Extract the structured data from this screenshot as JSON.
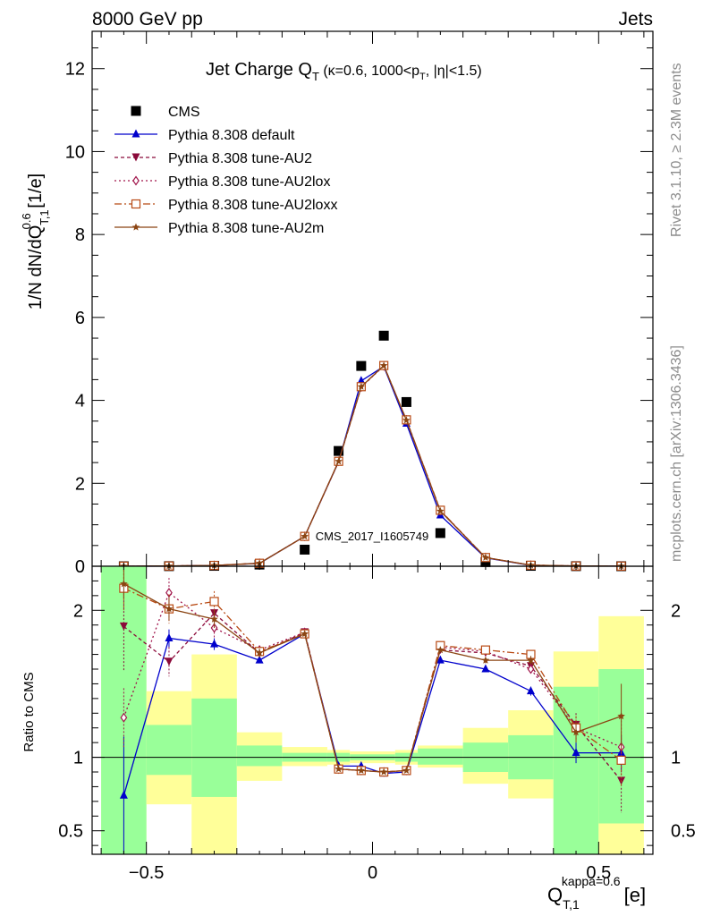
{
  "header": {
    "left": "8000 GeV pp",
    "right": "Jets"
  },
  "side": {
    "top": "Rivet 3.1.10, ≥ 2.3M events",
    "bottom": "mcplots.cern.ch [arXiv:1306.3436]"
  },
  "watermark": "CMS_2017_I1605749",
  "colors": {
    "cms": "#000000",
    "default": "#0000cc",
    "au2": "#8b0a3a",
    "au2lox": "#a0144a",
    "au2loxx": "#b84a14",
    "au2m": "#8b4513",
    "band_green": "#99ff99",
    "band_yellow": "#ffff99"
  },
  "chart_data": {
    "type": "scatter",
    "title": "Jet Charge Q_T (κ=0.6, 1000<p_T, |η|<1.5)",
    "xlabel": "Q_{T,1}^{kappa=0.6} [e]",
    "xlim": [
      -0.62,
      0.62
    ],
    "main": {
      "ylabel": "1/N dN/dQ_{T,1}^{0.6} [1/e]",
      "ylim": [
        0,
        12.9
      ],
      "yticks": [
        0,
        2,
        4,
        6,
        8,
        10,
        12
      ],
      "x": [
        -0.55,
        -0.45,
        -0.35,
        -0.25,
        -0.15,
        -0.075,
        -0.025,
        0.025,
        0.075,
        0.15,
        0.25,
        0.35,
        0.45,
        0.55
      ],
      "series": [
        {
          "name": "CMS",
          "key": "cms",
          "marker": "square",
          "dash": "none",
          "values": [
            0.0,
            0.003,
            0.01,
            0.04,
            0.4,
            2.78,
            4.83,
            5.56,
            3.96,
            0.8,
            0.1,
            0.01,
            0.003,
            0.001
          ]
        },
        {
          "name": "Pythia 8.308 default",
          "key": "default",
          "marker": "triangle-up",
          "dash": "none",
          "values": [
            0.001,
            0.005,
            0.018,
            0.07,
            0.72,
            2.52,
            4.47,
            4.82,
            3.44,
            1.23,
            0.2,
            0.02,
            0.005,
            0.003
          ]
        },
        {
          "name": "Pythia 8.308 tune-AU2",
          "key": "au2",
          "marker": "triangle-down",
          "dash": "4,3",
          "values": [
            0.001,
            0.006,
            0.02,
            0.073,
            0.72,
            2.52,
            4.32,
            4.84,
            3.52,
            1.34,
            0.21,
            0.025,
            0.006,
            0.003
          ]
        },
        {
          "name": "Pythia 8.308 tune-AU2lox",
          "key": "au2lox",
          "marker": "diamond-open",
          "dash": "2,3",
          "values": [
            0.001,
            0.006,
            0.02,
            0.073,
            0.72,
            2.53,
            4.32,
            4.83,
            3.53,
            1.34,
            0.21,
            0.025,
            0.006,
            0.003
          ]
        },
        {
          "name": "Pythia 8.308 tune-AU2loxx",
          "key": "au2loxx",
          "marker": "square-open",
          "dash": "8,3,2,3",
          "values": [
            0.001,
            0.006,
            0.02,
            0.072,
            0.72,
            2.53,
            4.33,
            4.84,
            3.53,
            1.35,
            0.21,
            0.025,
            0.006,
            0.003
          ]
        },
        {
          "name": "Pythia 8.308 tune-AU2m",
          "key": "au2m",
          "marker": "star",
          "dash": "none",
          "values": [
            0.001,
            0.006,
            0.02,
            0.072,
            0.72,
            2.53,
            4.33,
            4.84,
            3.52,
            1.33,
            0.21,
            0.025,
            0.006,
            0.003
          ]
        }
      ]
    },
    "ratio": {
      "ylabel": "Ratio to CMS",
      "ylim": [
        0.34,
        2.3
      ],
      "yticks": [
        0.5,
        1,
        2
      ],
      "reference": 1,
      "bins": [
        {
          "x0": -0.6,
          "x1": -0.5,
          "green": [
            0.34,
            2.3
          ],
          "yellow": [
            0.34,
            2.3
          ]
        },
        {
          "x0": -0.5,
          "x1": -0.4,
          "green": [
            0.88,
            1.22
          ],
          "yellow": [
            0.68,
            1.45
          ]
        },
        {
          "x0": -0.4,
          "x1": -0.3,
          "green": [
            0.73,
            1.4
          ],
          "yellow": [
            0.34,
            1.7
          ]
        },
        {
          "x0": -0.3,
          "x1": -0.2,
          "green": [
            0.94,
            1.08
          ],
          "yellow": [
            0.84,
            1.17
          ]
        },
        {
          "x0": -0.2,
          "x1": -0.1,
          "green": [
            0.97,
            1.03
          ],
          "yellow": [
            0.94,
            1.07
          ]
        },
        {
          "x0": -0.1,
          "x1": -0.05,
          "green": [
            0.97,
            1.03
          ],
          "yellow": [
            0.95,
            1.05
          ]
        },
        {
          "x0": -0.05,
          "x1": 0.0,
          "green": [
            0.98,
            1.02
          ],
          "yellow": [
            0.96,
            1.04
          ]
        },
        {
          "x0": 0.0,
          "x1": 0.05,
          "green": [
            0.98,
            1.02
          ],
          "yellow": [
            0.96,
            1.04
          ]
        },
        {
          "x0": 0.05,
          "x1": 0.1,
          "green": [
            0.97,
            1.03
          ],
          "yellow": [
            0.95,
            1.05
          ]
        },
        {
          "x0": 0.1,
          "x1": 0.2,
          "green": [
            0.95,
            1.06
          ],
          "yellow": [
            0.93,
            1.08
          ]
        },
        {
          "x0": 0.2,
          "x1": 0.3,
          "green": [
            0.9,
            1.1
          ],
          "yellow": [
            0.82,
            1.2
          ]
        },
        {
          "x0": 0.3,
          "x1": 0.4,
          "green": [
            0.85,
            1.15
          ],
          "yellow": [
            0.72,
            1.32
          ]
        },
        {
          "x0": 0.4,
          "x1": 0.5,
          "green": [
            0.34,
            1.48
          ],
          "yellow": [
            0.34,
            1.72
          ]
        },
        {
          "x0": 0.5,
          "x1": 0.6,
          "green": [
            0.55,
            1.6
          ],
          "yellow": [
            0.34,
            1.96
          ]
        }
      ],
      "series": [
        {
          "key": "default",
          "values": [
            0.74,
            1.81,
            1.77,
            1.66,
            1.84,
            0.94,
            0.94,
            0.89,
            0.9,
            1.66,
            1.6,
            1.45,
            1.03,
            1.03
          ],
          "err": [
            0.4,
            0.06,
            0.04,
            0.02,
            0.01,
            0.01,
            0.01,
            0.01,
            0.01,
            0.01,
            0.02,
            0.03,
            0.07,
            0.12
          ]
        },
        {
          "key": "au2",
          "values": [
            1.89,
            1.65,
            1.98,
            1.71,
            1.85,
            0.92,
            0.91,
            0.9,
            0.91,
            1.73,
            1.71,
            1.62,
            1.22,
            0.84
          ],
          "err": [
            0.3,
            0.1,
            0.08,
            0.03,
            0.01,
            0.01,
            0.01,
            0.01,
            0.01,
            0.01,
            0.02,
            0.03,
            0.08,
            0.22
          ]
        },
        {
          "key": "au2lox",
          "values": [
            1.27,
            2.12,
            1.88,
            1.73,
            1.85,
            0.92,
            0.91,
            0.9,
            0.91,
            1.75,
            1.72,
            1.6,
            1.2,
            1.07
          ],
          "err": [
            0.2,
            0.1,
            0.07,
            0.03,
            0.01,
            0.01,
            0.01,
            0.01,
            0.01,
            0.01,
            0.02,
            0.03,
            0.08,
            0.18
          ]
        },
        {
          "key": "au2loxx",
          "values": [
            2.15,
            2.01,
            2.06,
            1.72,
            1.84,
            0.92,
            0.91,
            0.9,
            0.91,
            1.76,
            1.73,
            1.7,
            1.2,
            0.98
          ],
          "err": [
            0.15,
            0.1,
            0.07,
            0.03,
            0.01,
            0.01,
            0.01,
            0.01,
            0.01,
            0.01,
            0.02,
            0.03,
            0.08,
            0.18
          ]
        },
        {
          "key": "au2m",
          "values": [
            2.18,
            2.01,
            1.94,
            1.71,
            1.84,
            0.92,
            0.91,
            0.9,
            0.91,
            1.73,
            1.66,
            1.66,
            1.17,
            1.28
          ],
          "err": [
            0.1,
            0.08,
            0.06,
            0.03,
            0.01,
            0.01,
            0.01,
            0.01,
            0.01,
            0.01,
            0.02,
            0.03,
            0.07,
            0.22
          ]
        }
      ]
    },
    "xticks": [
      -0.5,
      0,
      0.5
    ],
    "legend": "top-left"
  }
}
